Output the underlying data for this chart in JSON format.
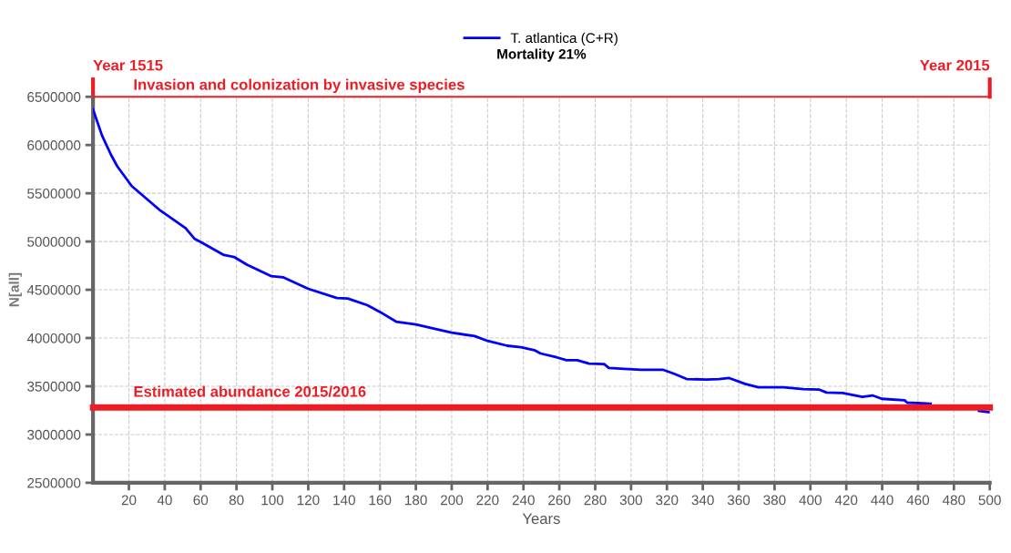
{
  "chart_data": {
    "type": "line",
    "title": "Mortality 21%",
    "xlabel": "Years",
    "ylabel": "N[all]",
    "x": [
      0,
      5,
      10,
      13.5,
      21.6,
      37.6,
      51.6,
      56.5,
      60.6,
      73,
      78.6,
      85.8,
      99.5,
      105.9,
      120,
      136,
      142,
      153,
      160,
      169,
      180,
      189.4,
      200,
      212.8,
      220,
      231,
      238.6,
      246,
      249.6,
      258.5,
      264,
      270,
      276.6,
      285,
      287.6,
      296,
      305.6,
      318,
      324,
      331,
      342,
      349,
      354.7,
      363.6,
      371,
      385,
      396,
      405,
      409,
      418,
      429,
      434.6,
      439.8,
      452.5,
      454,
      467,
      478,
      489,
      494,
      500
    ],
    "series": [
      {
        "name": "T. atlantica (C+R)",
        "color": "#0000ff",
        "values": [
          6370000,
          6100000,
          5900000,
          5780000,
          5575000,
          5320000,
          5140000,
          5030000,
          4990000,
          4860000,
          4840000,
          4760000,
          4640000,
          4630000,
          4510000,
          4415000,
          4410000,
          4340000,
          4270000,
          4170000,
          4140000,
          4100000,
          4055000,
          4020000,
          3970000,
          3920000,
          3905000,
          3875000,
          3840000,
          3800000,
          3770000,
          3770000,
          3735000,
          3730000,
          3690000,
          3680000,
          3670000,
          3670000,
          3630000,
          3575000,
          3570000,
          3575000,
          3585000,
          3525000,
          3490000,
          3490000,
          3470000,
          3465000,
          3435000,
          3430000,
          3390000,
          3405000,
          3370000,
          3355000,
          3330000,
          3320000,
          null,
          null,
          3245000,
          3230000
        ]
      }
    ],
    "xlim": [
      0,
      500
    ],
    "xticks": [
      20,
      40,
      60,
      80,
      100,
      120,
      140,
      160,
      180,
      200,
      220,
      240,
      260,
      280,
      300,
      320,
      340,
      360,
      380,
      400,
      420,
      440,
      460,
      480,
      500
    ],
    "ylim": [
      2500000,
      6500000
    ],
    "yticks": [
      2500000,
      3000000,
      3500000,
      4000000,
      4500000,
      5000000,
      5500000,
      6000000,
      6500000
    ],
    "ref_lines": [
      {
        "axis": "y",
        "value": 6500000,
        "label": "Invasion and colonization by invasive species",
        "color": "#ed1c24"
      },
      {
        "axis": "y",
        "value": 3280000,
        "label": "Estimated abundance 2015/2016",
        "color": "#ed1c24"
      },
      {
        "axis": "x",
        "value": 0,
        "label": "Year 1515",
        "color": "#ed1c24"
      },
      {
        "axis": "x",
        "value": 500,
        "label": "Year 2015",
        "color": "#ed1c24"
      }
    ],
    "grid": true,
    "legend": "top",
    "line_style": "solid",
    "marker": "none"
  }
}
